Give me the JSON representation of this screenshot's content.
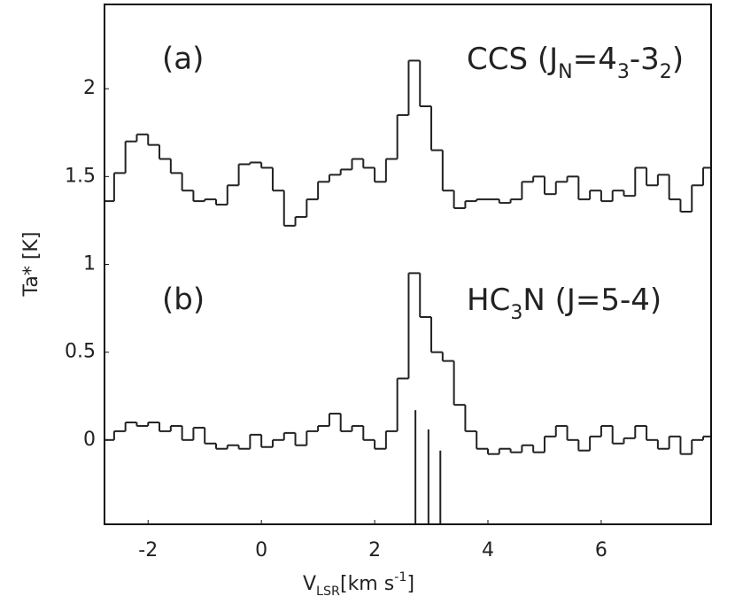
{
  "chart_data": {
    "type": "step",
    "xlabel_parts": [
      {
        "text": "V",
        "pos": "base"
      },
      {
        "text": "LSR",
        "pos": "sub"
      },
      {
        "text": "[km s",
        "pos": "base"
      },
      {
        "text": "-1",
        "pos": "sup"
      },
      {
        "text": "]",
        "pos": "base"
      }
    ],
    "ylabel": "Ta* [K]",
    "xlim": [
      -2.77,
      7.94
    ],
    "ylim": [
      -0.48,
      2.48
    ],
    "xticks": [
      -2,
      0,
      2,
      4,
      6
    ],
    "yticks": [
      0,
      0.5,
      1,
      1.5,
      2
    ],
    "x": [
      -2.7,
      -2.5,
      -2.3,
      -2.1,
      -1.9,
      -1.7,
      -1.5,
      -1.3,
      -1.1,
      -0.9,
      -0.7,
      -0.5,
      -0.3,
      -0.1,
      0.1,
      0.3,
      0.5,
      0.7,
      0.9,
      1.1,
      1.3,
      1.5,
      1.7,
      1.9,
      2.1,
      2.3,
      2.5,
      2.7,
      2.9,
      3.1,
      3.3,
      3.5,
      3.7,
      3.9,
      4.1,
      4.3,
      4.5,
      4.7,
      4.9,
      5.1,
      5.3,
      5.5,
      5.7,
      5.9,
      6.1,
      6.3,
      6.5,
      6.7,
      6.9,
      7.1,
      7.3,
      7.5,
      7.7,
      7.9
    ],
    "series": [
      {
        "color": "#222222",
        "values": [
          1.36,
          1.52,
          1.7,
          1.74,
          1.68,
          1.6,
          1.52,
          1.42,
          1.36,
          1.37,
          1.34,
          1.45,
          1.57,
          1.58,
          1.55,
          1.42,
          1.22,
          1.27,
          1.37,
          1.47,
          1.51,
          1.54,
          1.6,
          1.55,
          1.47,
          1.6,
          1.85,
          2.16,
          1.9,
          1.65,
          1.42,
          1.32,
          1.36,
          1.37,
          1.37,
          1.35,
          1.37,
          1.47,
          1.5,
          1.4,
          1.47,
          1.5,
          1.37,
          1.42,
          1.36,
          1.42,
          1.39,
          1.55,
          1.45,
          1.51,
          1.37,
          1.3,
          1.45,
          1.55
        ],
        "panel": "(a)",
        "label_parts": [
          {
            "text": "CCS (J",
            "pos": "base"
          },
          {
            "text": "N",
            "pos": "sub"
          },
          {
            "text": "=4",
            "pos": "base"
          },
          {
            "text": "3",
            "pos": "sub"
          },
          {
            "text": "-3",
            "pos": "base"
          },
          {
            "text": "2",
            "pos": "sub"
          },
          {
            "text": ")",
            "pos": "base"
          }
        ]
      },
      {
        "color": "#222222",
        "values": [
          0.0,
          0.05,
          0.1,
          0.08,
          0.1,
          0.05,
          0.08,
          0.0,
          0.07,
          -0.02,
          -0.05,
          -0.03,
          -0.05,
          0.03,
          -0.04,
          0.0,
          0.04,
          -0.03,
          0.05,
          0.08,
          0.15,
          0.05,
          0.08,
          0.0,
          -0.05,
          0.05,
          0.35,
          0.95,
          0.7,
          0.5,
          0.45,
          0.2,
          0.05,
          -0.05,
          -0.08,
          -0.05,
          -0.07,
          -0.03,
          -0.07,
          0.02,
          0.08,
          0.0,
          -0.06,
          0.02,
          0.08,
          -0.02,
          0.01,
          0.08,
          0.0,
          -0.05,
          0.02,
          -0.08,
          0.0,
          0.02
        ],
        "panel": "(b)",
        "label_parts": [
          {
            "text": "HC",
            "pos": "base"
          },
          {
            "text": "3",
            "pos": "sub"
          },
          {
            "text": "N (J=5-4)",
            "pos": "base"
          }
        ]
      }
    ],
    "hyperfine": {
      "color": "#222222",
      "x": [
        2.72,
        2.95,
        3.16
      ],
      "values": [
        0.17,
        0.06,
        -0.06
      ]
    }
  }
}
